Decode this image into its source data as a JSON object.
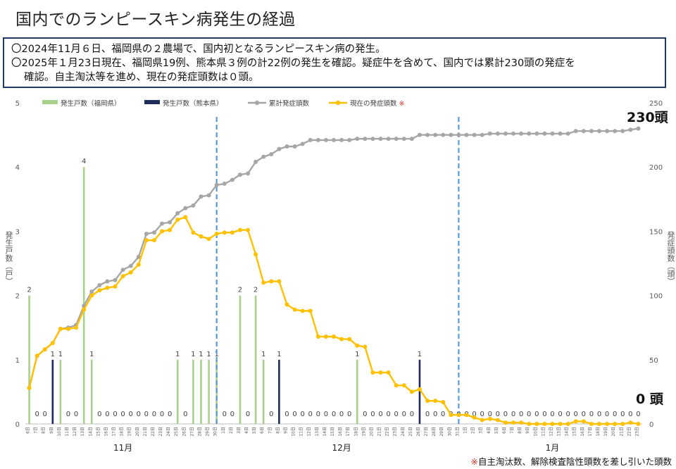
{
  "title": "国内でのランピースキン病発生の経過",
  "summary": {
    "line1": "〇2024年11月６日、福岡県の２農場で、国内初となるランピースキン病の発生。",
    "line2": "〇2025年１月23日現在、福岡県19例、熊本県３例の計22例の発生を確認。疑症牛を含めて、国内では累計230頭の発症を",
    "line3": "確認。自主淘汰等を進め、現在の発症頭数は０頭。"
  },
  "annotations": {
    "cumulative_latest": "230頭",
    "current_latest": "0 頭"
  },
  "footnote": {
    "mark": "※",
    "text": "自主淘汰数、解除検査陰性頭数を差し引いた頭数"
  },
  "chart_data": {
    "type": "bar+line",
    "ylabel_left": "発生戸数（戸）",
    "ylabel_right": "発症頭数（頭）",
    "ylim_left": [
      0,
      5
    ],
    "ylim_right": [
      0,
      250
    ],
    "yticks_left": [
      "0",
      "1",
      "2",
      "3",
      "4",
      "5"
    ],
    "yticks_right": [
      "0",
      "50",
      "100",
      "150",
      "200",
      "250"
    ],
    "legend": [
      {
        "name": "発生戸数（福岡県）",
        "color": "#a9d18e",
        "kind": "bar"
      },
      {
        "name": "発生戸数（熊本県）",
        "color": "#1f2d5c",
        "kind": "bar"
      },
      {
        "name": "累計発症頭数",
        "color": "#a6a6a6",
        "kind": "line"
      },
      {
        "name": "現在の発症頭数",
        "color": "#ffc000",
        "kind": "line",
        "mark": "※"
      }
    ],
    "months": [
      {
        "label": "11月",
        "from": 0,
        "to": 24
      },
      {
        "label": "12月",
        "from": 25,
        "to": 55
      },
      {
        "label": "1月",
        "from": 56,
        "to": 78
      }
    ],
    "x": [
      "6日",
      "7日",
      "8日",
      "9日",
      "10日",
      "11日",
      "12日",
      "13日",
      "14日",
      "15日",
      "16日",
      "17日",
      "18日",
      "19日",
      "20日",
      "21日",
      "22日",
      "23日",
      "24日",
      "25日",
      "26日",
      "27日",
      "28日",
      "29日",
      "30日",
      "1日",
      "2日",
      "3日",
      "4日",
      "5日",
      "6日",
      "7日",
      "8日",
      "9日",
      "10日",
      "11日",
      "12日",
      "13日",
      "14日",
      "15日",
      "16日",
      "17日",
      "18日",
      "19日",
      "20日",
      "21日",
      "22日",
      "23日",
      "24日",
      "25日",
      "26日",
      "27日",
      "28日",
      "29日",
      "30日",
      "31日",
      "1日",
      "2日",
      "3日",
      "4日",
      "5日",
      "6日",
      "7日",
      "8日",
      "9日",
      "10日",
      "11日",
      "12日",
      "13日",
      "14日",
      "15日",
      "16日",
      "17日",
      "18日",
      "19日",
      "20日",
      "21日",
      "22日",
      "23日"
    ],
    "markers": [
      "30日",
      "31日"
    ],
    "fukuoka": [
      2,
      0,
      0,
      0,
      1,
      0,
      0,
      4,
      1,
      0,
      0,
      0,
      0,
      0,
      0,
      0,
      0,
      0,
      0,
      1,
      0,
      1,
      1,
      1,
      1,
      0,
      0,
      2,
      0,
      2,
      1,
      0,
      0,
      0,
      0,
      0,
      0,
      0,
      0,
      0,
      0,
      0,
      1,
      0,
      0,
      0,
      0,
      0,
      0,
      0,
      0,
      0,
      0,
      0,
      0,
      0,
      0,
      0,
      0,
      0,
      0,
      0,
      0,
      0,
      0,
      0,
      0,
      0,
      0,
      0,
      0,
      0,
      0,
      0,
      0,
      0,
      0,
      0,
      0
    ],
    "kumamoto": [
      0,
      0,
      0,
      1,
      0,
      0,
      0,
      0,
      0,
      0,
      0,
      0,
      0,
      0,
      0,
      0,
      0,
      0,
      0,
      0,
      0,
      0,
      0,
      0,
      0,
      0,
      0,
      0,
      0,
      0,
      0,
      0,
      1,
      0,
      0,
      0,
      0,
      0,
      0,
      0,
      0,
      0,
      0,
      0,
      0,
      0,
      0,
      0,
      0,
      0,
      1,
      0,
      0,
      0,
      0,
      0,
      0,
      0,
      0,
      0,
      0,
      0,
      0,
      0,
      0,
      0,
      0,
      0,
      0,
      0,
      0,
      0,
      0,
      0,
      0,
      0,
      0,
      0,
      0
    ],
    "fukuoka_labels": [
      {
        "i": 0,
        "t": "2"
      },
      {
        "i": 4,
        "t": "1"
      },
      {
        "i": 7,
        "t": "4"
      },
      {
        "i": 8,
        "t": "1"
      },
      {
        "i": 19,
        "t": "1"
      },
      {
        "i": 21,
        "t": "1"
      },
      {
        "i": 22,
        "t": "1"
      },
      {
        "i": 23,
        "t": "1"
      },
      {
        "i": 24,
        "t": "1"
      },
      {
        "i": 27,
        "t": "2"
      },
      {
        "i": 29,
        "t": "2"
      },
      {
        "i": 30,
        "t": "1"
      },
      {
        "i": 42,
        "t": "1"
      }
    ],
    "kumamoto_labels": [
      {
        "i": 3,
        "t": "1"
      },
      {
        "i": 32,
        "t": "1"
      },
      {
        "i": 50,
        "t": "1"
      }
    ],
    "zero_labels": [
      1,
      2,
      5,
      6,
      9,
      10,
      11,
      12,
      13,
      14,
      15,
      16,
      17,
      18,
      20,
      25,
      26,
      28,
      31,
      33,
      34,
      35,
      36,
      37,
      38,
      39,
      40,
      41,
      43,
      44,
      45,
      46,
      47,
      48,
      49,
      51,
      52,
      53,
      54,
      55,
      56,
      57,
      58,
      59,
      60,
      61,
      62,
      63,
      64,
      65,
      66,
      67,
      68,
      69,
      70,
      71,
      72,
      73,
      74,
      75,
      76,
      77,
      78
    ],
    "zero_text": "0",
    "cumulative": [
      28,
      53,
      58,
      63,
      74,
      75,
      77,
      92,
      103,
      108,
      111,
      112,
      120,
      123,
      130,
      148,
      149,
      156,
      157,
      164,
      168,
      170,
      177,
      178,
      186,
      187,
      190,
      194,
      195,
      204,
      208,
      210,
      214,
      216,
      216,
      218,
      221,
      221,
      221,
      221,
      221,
      221,
      222,
      222,
      222,
      222,
      222,
      222,
      222,
      222,
      225,
      225,
      225,
      225,
      225,
      225,
      225,
      225,
      225,
      226,
      226,
      226,
      226,
      226,
      226,
      226,
      226,
      226,
      226,
      226,
      228,
      228,
      228,
      228,
      228,
      228,
      228,
      229,
      230
    ],
    "current": [
      28,
      53,
      58,
      63,
      74,
      74,
      75,
      89,
      100,
      104,
      106,
      107,
      115,
      118,
      124,
      143,
      143,
      150,
      151,
      159,
      161,
      149,
      146,
      144,
      148,
      149,
      149,
      151,
      151,
      132,
      110,
      111,
      111,
      93,
      89,
      88,
      88,
      68,
      68,
      68,
      66,
      66,
      61,
      60,
      40,
      40,
      40,
      30,
      30,
      25,
      27,
      18,
      18,
      17,
      7,
      7,
      7,
      5,
      3,
      4,
      3,
      1,
      1,
      1,
      0,
      0,
      0,
      0,
      0,
      0,
      2,
      2,
      0,
      0,
      0,
      0,
      0,
      1,
      0
    ]
  }
}
